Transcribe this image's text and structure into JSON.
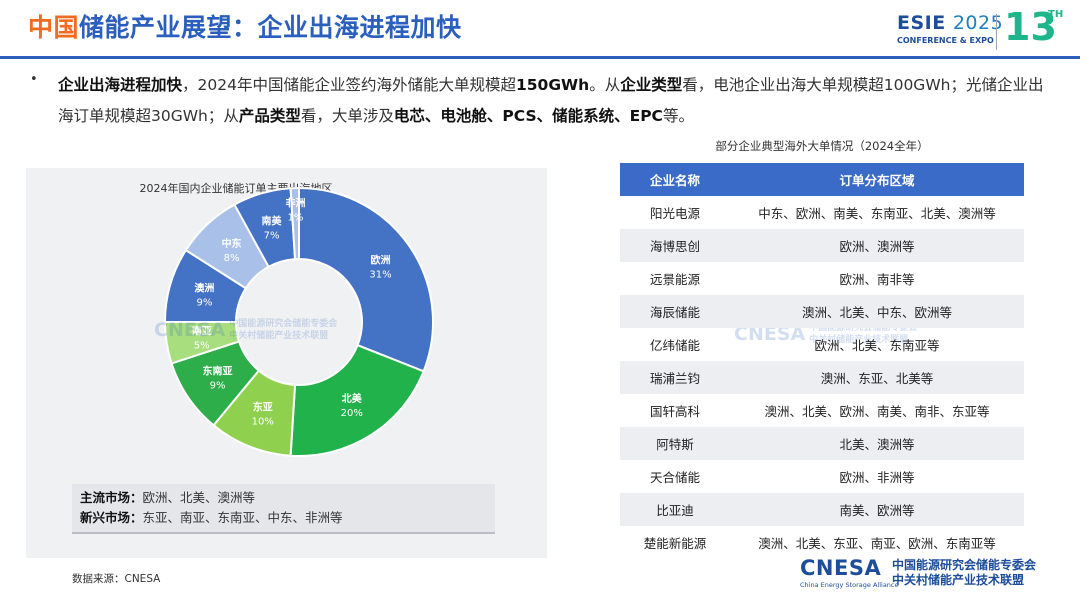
{
  "header": {
    "title_accent": "中国",
    "title_rest": "储能产业展望：企业出海进程加快",
    "event_name": "ESIE",
    "event_year": "2025",
    "event_sub": "CONFERENCE & EXPO",
    "edition_number": "13",
    "edition_suffix": "TH"
  },
  "summary": {
    "bullet": "•",
    "segments": [
      {
        "text": "企业出海进程加快",
        "bold": true
      },
      {
        "text": "，2024年中国储能企业签约海外储能大单规模超",
        "bold": false
      },
      {
        "text": "150GWh",
        "bold": true
      },
      {
        "text": "。从",
        "bold": false
      },
      {
        "text": "企业类型",
        "bold": true
      },
      {
        "text": "看，电池企业出海大单规模超100GWh；光储企业出海订单规模超30GWh；从",
        "bold": false
      },
      {
        "text": "产品类型",
        "bold": true
      },
      {
        "text": "看，大单涉及",
        "bold": false
      },
      {
        "text": "电芯、电池舱、PCS、储能系统、EPC",
        "bold": true
      },
      {
        "text": "等。",
        "bold": false
      }
    ]
  },
  "chart_data": {
    "type": "pie",
    "title": "2024年国内企业储能订单主要出海地区",
    "categories": [
      "欧洲",
      "北美",
      "东亚",
      "东南亚",
      "南亚",
      "澳洲",
      "中东",
      "南美",
      "非洲"
    ],
    "values": [
      31,
      20,
      10,
      9,
      5,
      9,
      8,
      7,
      1
    ],
    "labels": [
      "31%",
      "20%",
      "10%",
      "9%",
      "5%",
      "9%",
      "8%",
      "7%",
      "1%"
    ],
    "colors": [
      "#4472c4",
      "#22b24c",
      "#8fd14f",
      "#2eae4a",
      "#a9de7f",
      "#4472c4",
      "#a9c1e8",
      "#4472c4",
      "#a9c1e8"
    ],
    "donut": true
  },
  "chart_legend": {
    "mainstream_label": "主流市场：",
    "mainstream_value": "欧洲、北美、澳洲等",
    "emerging_label": "新兴市场：",
    "emerging_value": "东亚、南亚、东南亚、中东、非洲等"
  },
  "table": {
    "title": "部分企业典型海外大单情况（2024全年）",
    "headers": [
      "企业名称",
      "订单分布区域"
    ],
    "rows": [
      [
        "阳光电源",
        "中东、欧洲、南美、东南亚、北美、澳洲等"
      ],
      [
        "海博思创",
        "欧洲、澳洲等"
      ],
      [
        "远景能源",
        "欧洲、南非等"
      ],
      [
        "海辰储能",
        "澳洲、北美、中东、欧洲等"
      ],
      [
        "亿纬储能",
        "欧洲、北美、东南亚等"
      ],
      [
        "瑞浦兰钧",
        "澳洲、东亚、北美等"
      ],
      [
        "国轩高科",
        "澳洲、北美、欧洲、南美、南非、东亚等"
      ],
      [
        "阿特斯",
        "北美、澳洲等"
      ],
      [
        "天合储能",
        "欧洲、非洲等"
      ],
      [
        "比亚迪",
        "南美、欧洲等"
      ],
      [
        "楚能新能源",
        "澳洲、北美、东亚、南亚、欧洲、东南亚等"
      ]
    ]
  },
  "footer": {
    "source": "数据来源：CNESA",
    "logo_word": "CNESA",
    "logo_en": "China Energy Storage Alliance",
    "logo_cn_line1": "中国能源研究会储能专委会",
    "logo_cn_line2": "中关村储能产业技术联盟"
  }
}
